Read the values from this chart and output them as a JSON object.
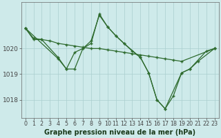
{
  "title": "Graphe pression niveau de la mer (hPa)",
  "x_labels": [
    "0",
    "1",
    "2",
    "3",
    "4",
    "5",
    "6",
    "7",
    "8",
    "9",
    "10",
    "11",
    "12",
    "13",
    "14",
    "15",
    "16",
    "17",
    "18",
    "19",
    "20",
    "21",
    "22",
    "23"
  ],
  "line1_x": [
    0,
    1,
    2,
    3,
    4,
    5,
    6,
    7,
    8,
    9,
    10,
    11,
    12,
    13,
    14,
    15,
    16,
    17,
    18,
    19,
    23
  ],
  "line1_y": [
    1020.8,
    1020.4,
    1020.35,
    1020.3,
    1020.2,
    1020.15,
    1020.1,
    1020.05,
    1020.0,
    1020.0,
    1019.95,
    1019.9,
    1019.85,
    1019.8,
    1019.75,
    1019.7,
    1019.65,
    1019.6,
    1019.55,
    1019.5,
    1020.0
  ],
  "line2_x": [
    0,
    4,
    5,
    6,
    7,
    8,
    9,
    10,
    11,
    12,
    14,
    15,
    16,
    17,
    18,
    19,
    20,
    22,
    23
  ],
  "line2_y": [
    1020.8,
    1019.6,
    1019.2,
    1019.85,
    1020.0,
    1020.3,
    1021.3,
    1020.85,
    1020.5,
    1020.2,
    1019.65,
    1019.05,
    1018.0,
    1017.65,
    1018.15,
    1019.05,
    1019.2,
    1019.9,
    1020.0
  ],
  "line3_x": [
    0,
    1,
    2,
    4,
    5,
    6,
    7,
    8,
    9,
    10,
    11,
    12,
    13,
    14,
    15,
    16,
    17,
    19,
    20,
    21,
    23
  ],
  "line3_y": [
    1020.8,
    1020.35,
    1020.35,
    1019.65,
    1019.2,
    1019.2,
    1020.0,
    1020.2,
    1021.35,
    1020.85,
    1020.5,
    1020.2,
    1019.9,
    1019.65,
    1019.05,
    1018.0,
    1017.65,
    1019.05,
    1019.2,
    1019.5,
    1020.0
  ],
  "line_color": "#2d6a2d",
  "bg_color": "#ceeaea",
  "grid_color": "#aacece",
  "ylim": [
    1017.3,
    1021.8
  ],
  "yticks": [
    1018,
    1019,
    1020
  ],
  "ylabel_fontsize": 6.5,
  "xlabel_fontsize": 5.8,
  "title_fontsize": 7.0
}
